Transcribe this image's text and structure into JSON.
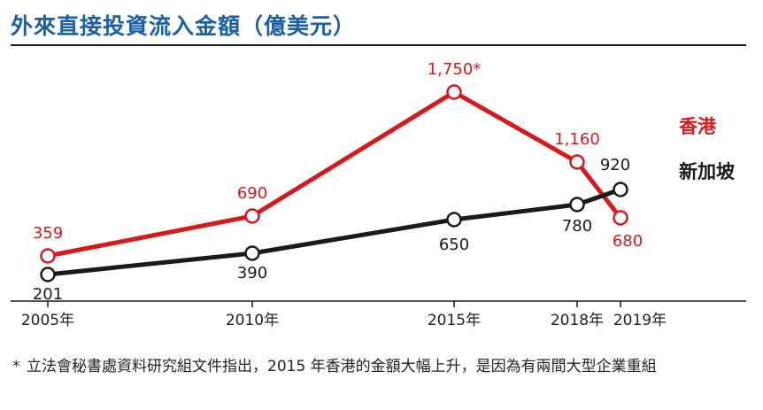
{
  "title": "外來直接投資流入金額（億美元）",
  "footnote": {
    "marker": "*",
    "text": "立法會秘書處資料研究組文件指出，2015 年香港的金額大幅上升，是因為有兩間大型企業重組"
  },
  "colors": {
    "title": "#1a5fa8",
    "hong_kong": "#d7191c",
    "singapore": "#1a1a1a"
  },
  "chart_data": {
    "type": "line",
    "title": "外來直接投資流入金額（億美元）",
    "xlabel": "",
    "ylabel": "",
    "x": [
      "2005年",
      "2010年",
      "2015年",
      "2018年",
      "2019年"
    ],
    "x_years": [
      2005,
      2010,
      2015,
      2018,
      2019
    ],
    "ylim": [
      0,
      2000
    ],
    "grid": false,
    "legend_placement": "right",
    "series": [
      {
        "name": "香港",
        "color": "#d7191c",
        "values": [
          359,
          690,
          1750,
          1160,
          680
        ],
        "labels": [
          "359",
          "690",
          "1,750*",
          "1,160",
          "680"
        ]
      },
      {
        "name": "新加坡",
        "color": "#1a1a1a",
        "values": [
          201,
          390,
          650,
          780,
          920
        ],
        "labels": [
          "201",
          "390",
          "650",
          "780",
          "920"
        ]
      }
    ]
  }
}
